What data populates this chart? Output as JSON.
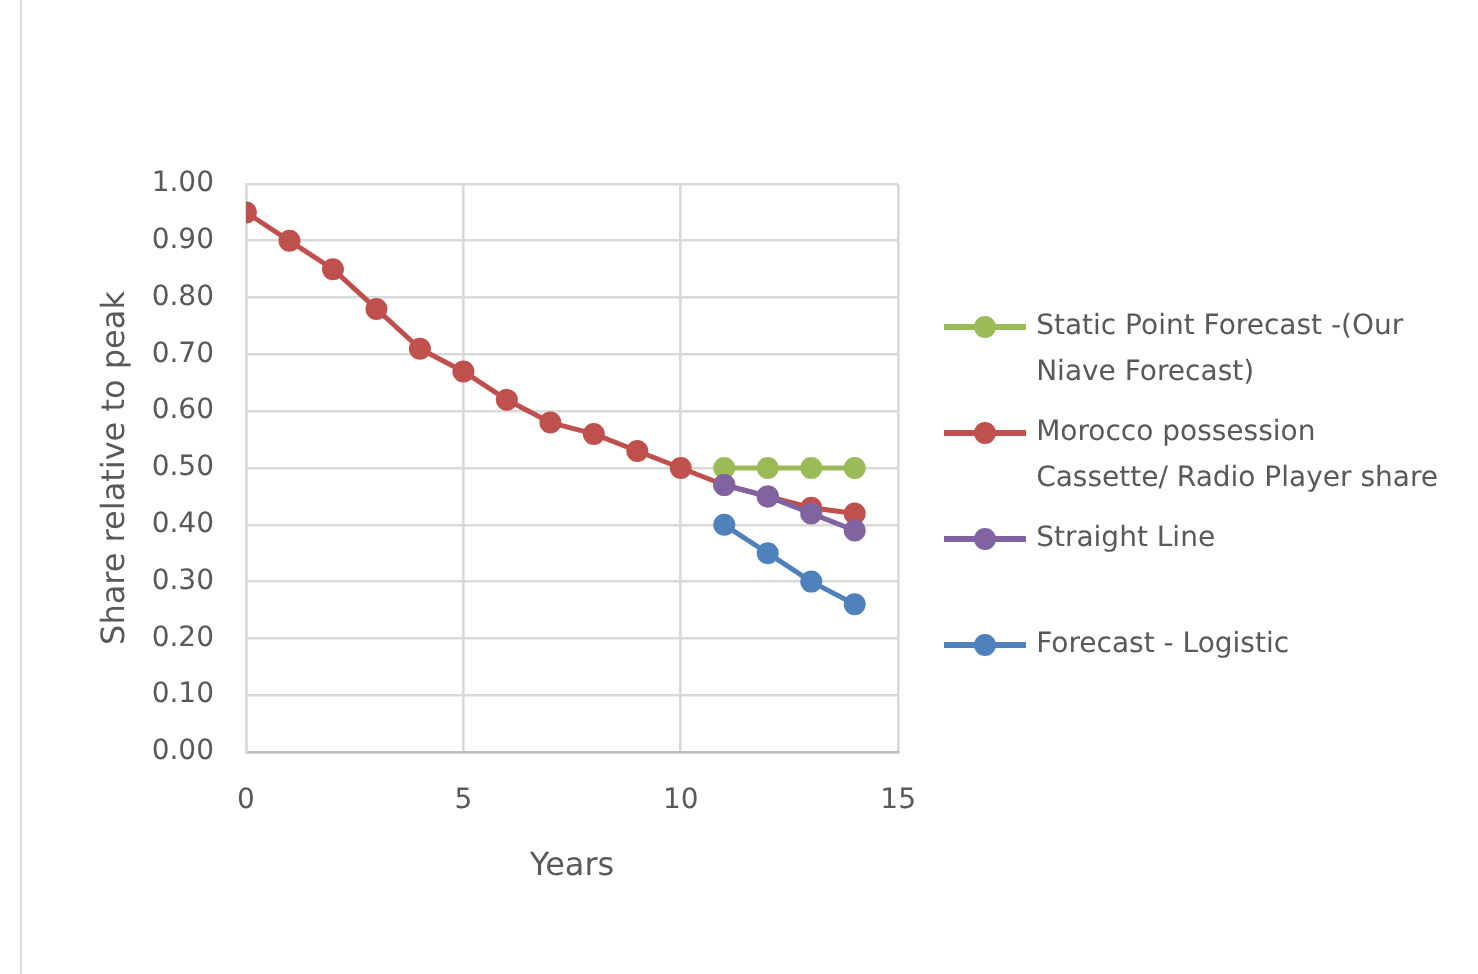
{
  "chart_data": {
    "type": "line",
    "xlabel": "Years",
    "ylabel": "Share relative to peak",
    "xlim": [
      0,
      15
    ],
    "xticks": [
      0,
      5,
      10,
      15
    ],
    "ylim": [
      0,
      1
    ],
    "yticks": [
      {
        "value": 0,
        "label": "0.00"
      },
      {
        "value": 0.1,
        "label": "0.10"
      },
      {
        "value": 0.2,
        "label": "0.20"
      },
      {
        "value": 0.3,
        "label": "0.30"
      },
      {
        "value": 0.4,
        "label": "0.40"
      },
      {
        "value": 0.5,
        "label": "0.50"
      },
      {
        "value": 0.6,
        "label": "0.60"
      },
      {
        "value": 0.7,
        "label": "0.70"
      },
      {
        "value": 0.8,
        "label": "0.80"
      },
      {
        "value": 0.9,
        "label": "0.90"
      },
      {
        "value": 1,
        "label": "1.00"
      }
    ],
    "grid": true,
    "legend": "right",
    "marker": "circle",
    "line_style": "solid",
    "series": [
      {
        "name": "Static Point Forecast -(Our Niave Forecast)",
        "color": "#9bbb59",
        "x": [
          11,
          12,
          13,
          14
        ],
        "values": [
          0.5,
          0.5,
          0.5,
          0.5
        ]
      },
      {
        "name": "Morocco possession Cassette/ Radio Player share",
        "color": "#c0504d",
        "x": [
          0,
          1,
          2,
          3,
          4,
          5,
          6,
          7,
          8,
          9,
          10,
          11,
          12,
          13,
          14
        ],
        "values": [
          0.95,
          0.9,
          0.85,
          0.78,
          0.71,
          0.67,
          0.62,
          0.58,
          0.56,
          0.53,
          0.5,
          0.47,
          0.45,
          0.43,
          0.42
        ]
      },
      {
        "name": "Straight Line",
        "color": "#8064a2",
        "x": [
          11,
          12,
          13,
          14
        ],
        "values": [
          0.47,
          0.45,
          0.42,
          0.39
        ]
      },
      {
        "name": "Forecast - Logistic",
        "color": "#4f81bd",
        "x": [
          11,
          12,
          13,
          14
        ],
        "values": [
          0.4,
          0.35,
          0.3,
          0.26
        ]
      }
    ]
  }
}
